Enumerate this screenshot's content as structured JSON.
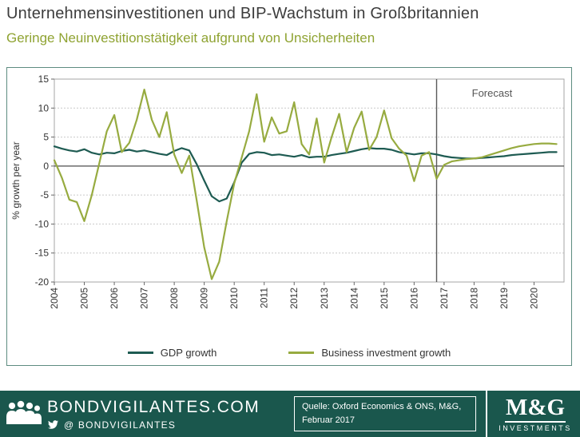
{
  "title": "Unternehmensinvestitionen und BIP-Wachstum in Großbritannien",
  "subtitle": "Geringe Neuinvestitionstätigkeit aufgrund von Unsicherheiten",
  "chart_data": {
    "type": "line",
    "title": "",
    "xlabel": "",
    "ylabel": "% growth per year",
    "ylim": [
      -20,
      15
    ],
    "ytick_step": 5,
    "xlim": [
      2004,
      2021
    ],
    "x_years": [
      2004,
      2005,
      2006,
      2007,
      2008,
      2009,
      2010,
      2011,
      2012,
      2013,
      2014,
      2015,
      2016,
      2017,
      2018,
      2019,
      2020
    ],
    "x_start": 2004,
    "x_step": 0.25,
    "grid": "horizontal-dotted",
    "legend_position": "bottom",
    "forecast_label": "Forecast",
    "forecast_x": 2016.75,
    "series": [
      {
        "name": "GDP growth",
        "color": "#1e5b52",
        "values": [
          3.4,
          3.0,
          2.7,
          2.5,
          2.9,
          2.3,
          2.0,
          2.3,
          2.2,
          2.6,
          2.8,
          2.5,
          2.7,
          2.4,
          2.1,
          1.9,
          2.6,
          3.1,
          2.7,
          0.3,
          -2.5,
          -5.2,
          -6.1,
          -5.6,
          -2.8,
          0.6,
          2.1,
          2.4,
          2.3,
          1.9,
          2.0,
          1.8,
          1.6,
          1.9,
          1.5,
          1.6,
          1.6,
          1.9,
          2.1,
          2.3,
          2.6,
          2.9,
          3.1,
          3.0,
          3.0,
          2.8,
          2.4,
          2.2,
          2.0,
          2.2,
          2.2,
          2.0,
          1.7,
          1.5,
          1.4,
          1.3,
          1.3,
          1.4,
          1.5,
          1.6,
          1.7,
          1.9,
          2.0,
          2.1,
          2.2,
          2.3,
          2.4,
          2.4
        ]
      },
      {
        "name": "Business investment growth",
        "color": "#97ab40",
        "values": [
          1.0,
          -2.0,
          -5.8,
          -6.2,
          -9.5,
          -5.0,
          0.5,
          6.0,
          8.8,
          2.4,
          4.0,
          8.0,
          13.2,
          8.0,
          5.0,
          9.3,
          2.0,
          -1.2,
          1.8,
          -6.0,
          -14.0,
          -19.5,
          -16.5,
          -9.5,
          -3.0,
          1.5,
          6.0,
          12.4,
          4.2,
          8.4,
          5.6,
          6.0,
          11.0,
          3.8,
          2.0,
          8.2,
          0.6,
          5.0,
          9.0,
          2.4,
          6.6,
          9.4,
          2.8,
          5.0,
          9.6,
          4.8,
          3.0,
          1.8,
          -2.6,
          1.8,
          2.4,
          -2.2,
          0.2,
          0.8,
          1.0,
          1.2,
          1.3,
          1.5,
          1.9,
          2.3,
          2.7,
          3.1,
          3.4,
          3.6,
          3.8,
          3.9,
          3.9,
          3.8
        ]
      }
    ]
  },
  "footer": {
    "brand": "BONDVIGILANTES.COM",
    "twitter_handle": "@ BONDVIGILANTES",
    "source_line1": "Quelle: Oxford Economics & ONS, M&G,",
    "source_line2": "Februar 2017",
    "logo_text": "M&G",
    "logo_subtext": "INVESTMENTS"
  },
  "colors": {
    "footer_background": "#1a574d",
    "title_text": "#3c3c3c",
    "subtitle_text": "#8fa332",
    "gdp_line": "#1e5b52",
    "investment_line": "#97ab40",
    "forecast_line": "#595959",
    "chart_border": "#5d8c80"
  }
}
